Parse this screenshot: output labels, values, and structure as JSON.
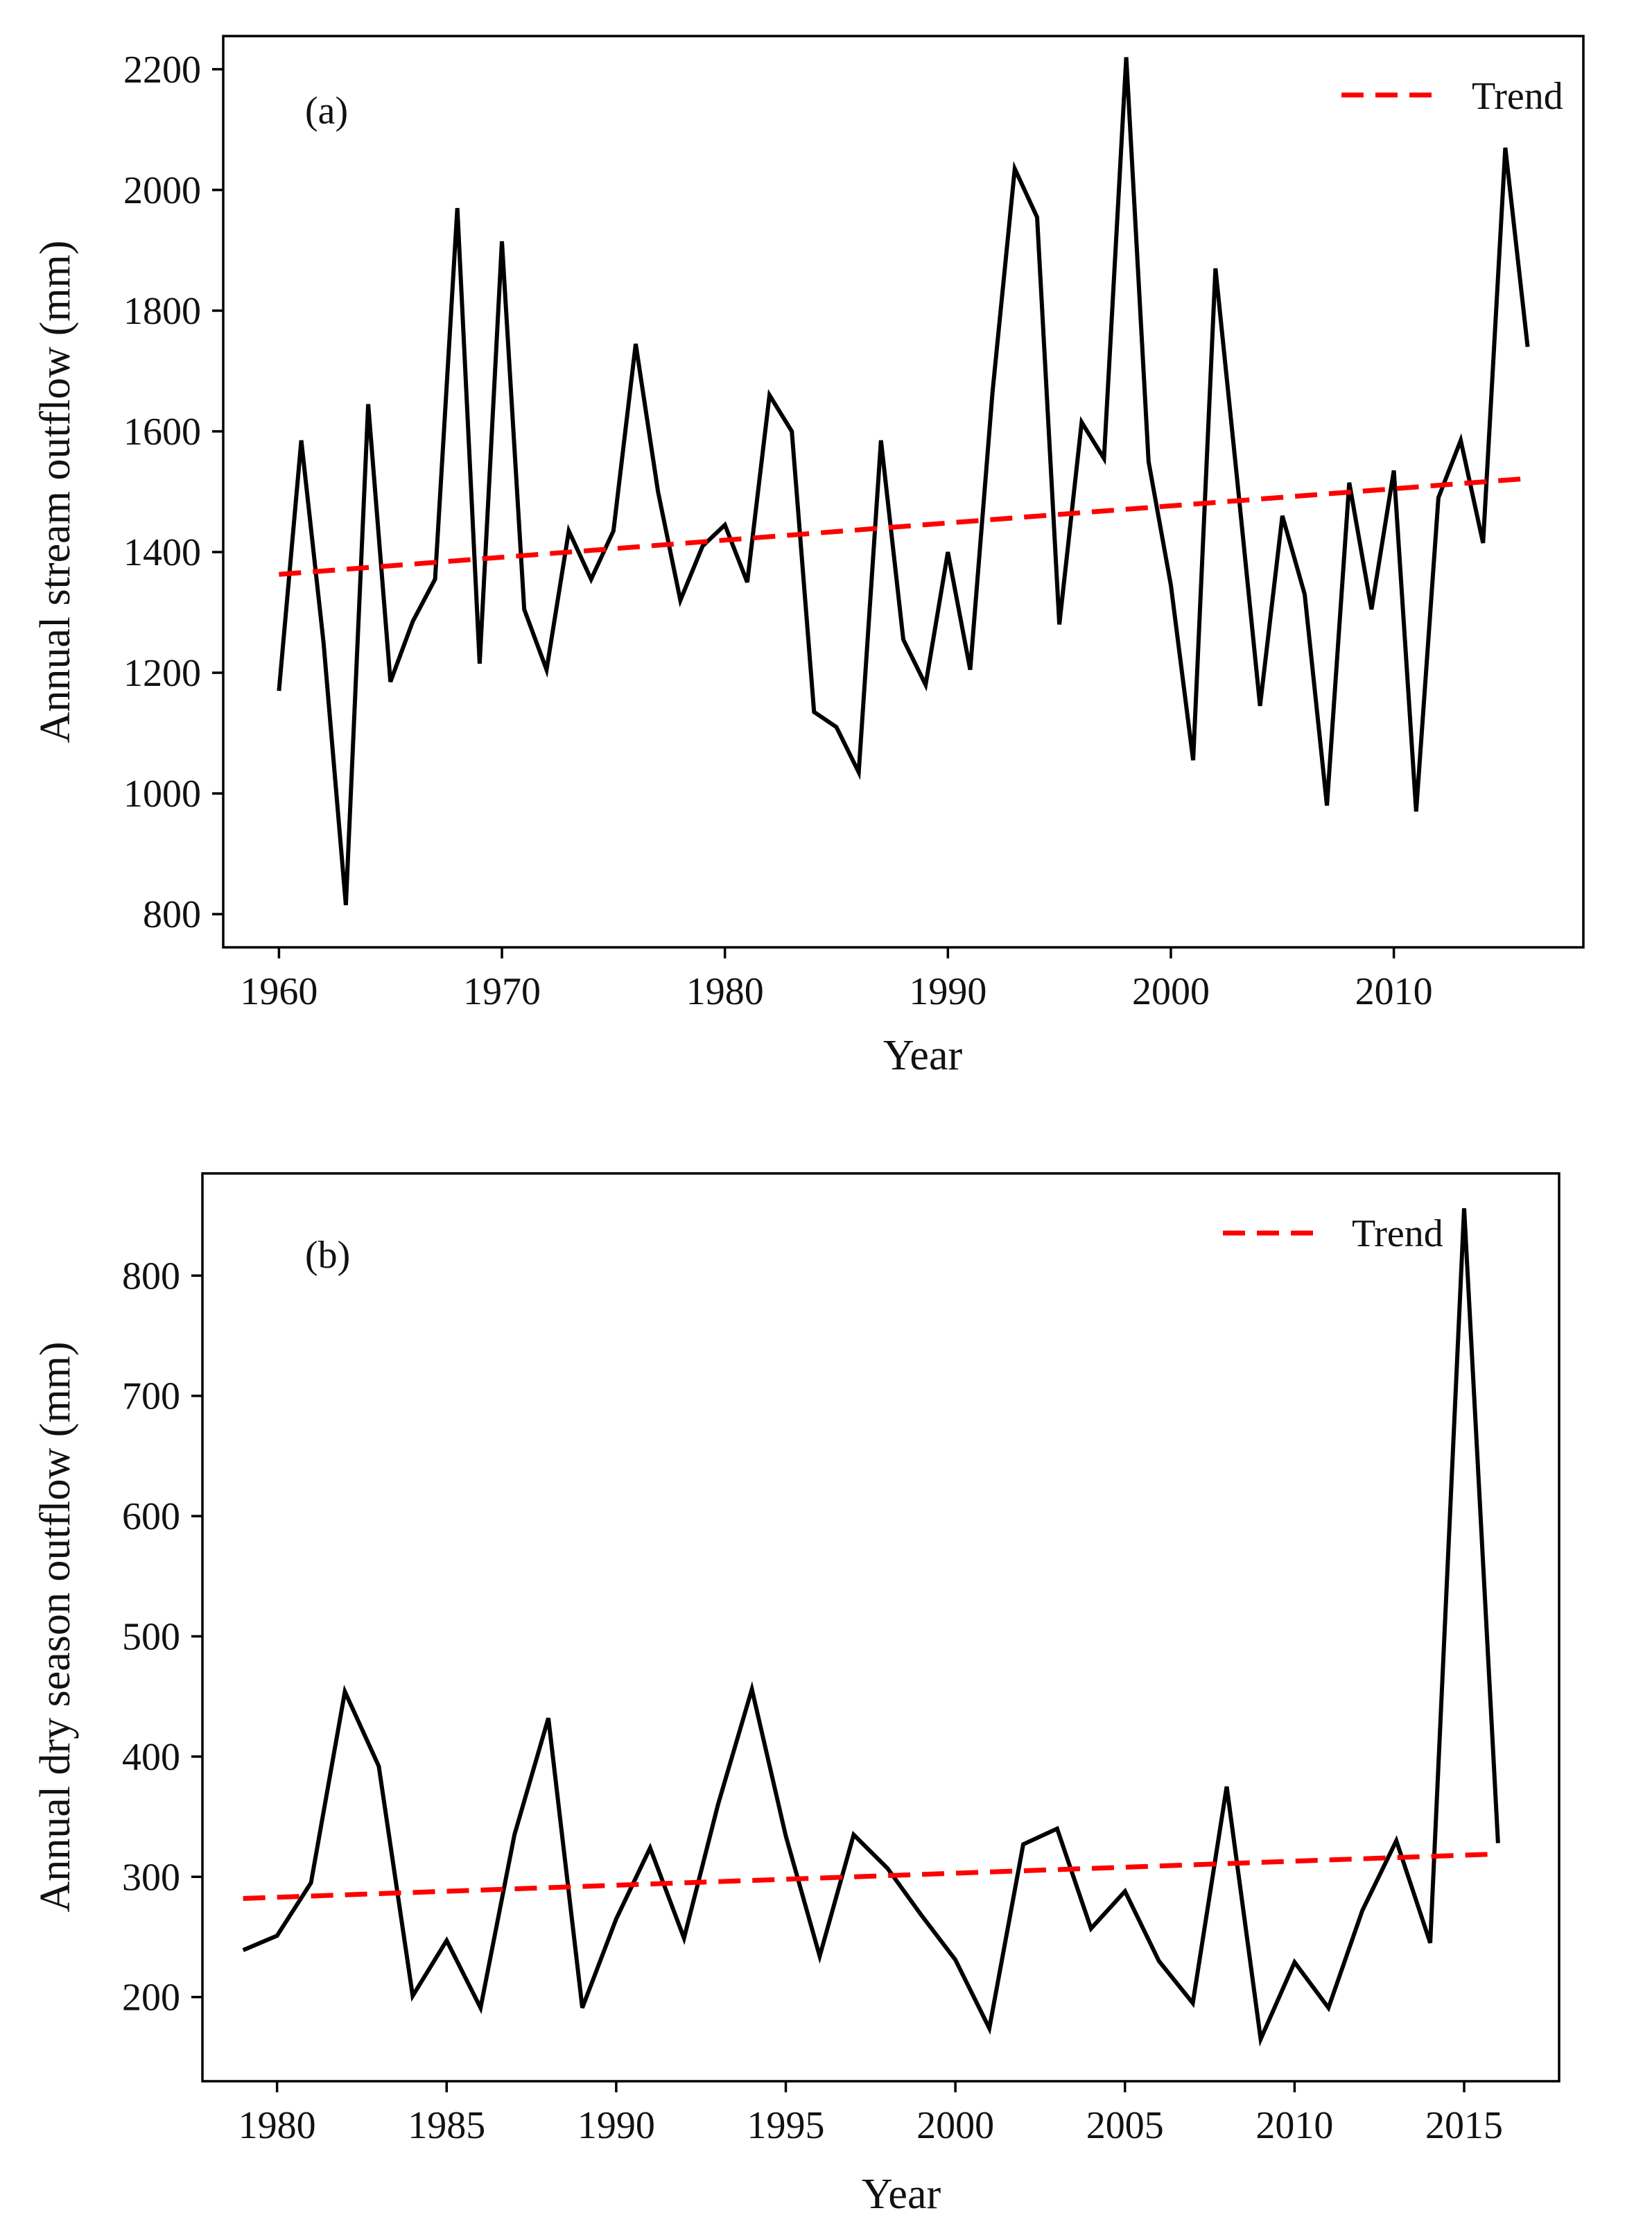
{
  "colors": {
    "series": "#000000",
    "trend": "#ff0000",
    "axes": "#000000",
    "background": "#ffffff"
  },
  "chart_data": [
    {
      "type": "line",
      "panel_label": "(a)",
      "xlabel": "Year",
      "ylabel": "Annual stream outflow (mm)",
      "xlim": [
        1957.5,
        2018.5
      ],
      "ylim": [
        745,
        2255
      ],
      "xticks": [
        1960,
        1970,
        1980,
        1990,
        2000,
        2010
      ],
      "yticks": [
        800,
        1000,
        1200,
        1400,
        1600,
        1800,
        2000,
        2200
      ],
      "grid": false,
      "legend": {
        "position": "top-right",
        "label": "Trend"
      },
      "series": [
        {
          "name": "Annual stream outflow",
          "style": "solid",
          "x": [
            1960,
            1961,
            1962,
            1963,
            1964,
            1965,
            1966,
            1967,
            1968,
            1969,
            1970,
            1971,
            1972,
            1973,
            1974,
            1975,
            1976,
            1977,
            1978,
            1979,
            1980,
            1981,
            1982,
            1983,
            1984,
            1985,
            1986,
            1987,
            1988,
            1989,
            1990,
            1991,
            1992,
            1993,
            1994,
            1995,
            1996,
            1997,
            1998,
            1999,
            2000,
            2001,
            2002,
            2003,
            2004,
            2005,
            2006,
            2007,
            2008,
            2009,
            2010,
            2011,
            2012,
            2013,
            2014,
            2015,
            2016
          ],
          "y": [
            1170,
            1585,
            1250,
            815,
            1645,
            1185,
            1285,
            1355,
            1970,
            1215,
            1915,
            1305,
            1205,
            1435,
            1355,
            1435,
            1745,
            1500,
            1320,
            1410,
            1445,
            1350,
            1660,
            1600,
            1135,
            1110,
            1035,
            1585,
            1255,
            1180,
            1400,
            1205,
            1665,
            2035,
            1955,
            1280,
            1615,
            1555,
            2220,
            1550,
            1345,
            1055,
            1870,
            1510,
            1145,
            1460,
            1330,
            980,
            1515,
            1305,
            1535,
            970,
            1490,
            1585,
            1415,
            2070,
            1740
          ]
        },
        {
          "name": "Trend",
          "style": "dashed",
          "x": [
            1960,
            2016
          ],
          "y": [
            1363,
            1522
          ]
        }
      ]
    },
    {
      "type": "line",
      "panel_label": "(b)",
      "xlabel": "Year",
      "ylabel": "Annual dry season outflow (mm)",
      "xlim": [
        1977.8,
        2017.8
      ],
      "ylim": [
        130,
        885
      ],
      "xticks": [
        1980,
        1985,
        1990,
        1995,
        2000,
        2005,
        2010,
        2015
      ],
      "yticks": [
        200,
        300,
        400,
        500,
        600,
        700,
        800
      ],
      "grid": false,
      "legend": {
        "position": "top-right",
        "label": "Trend"
      },
      "series": [
        {
          "name": "Annual dry season outflow",
          "style": "solid",
          "x": [
            1979,
            1980,
            1981,
            1982,
            1983,
            1984,
            1985,
            1986,
            1987,
            1988,
            1989,
            1990,
            1991,
            1992,
            1993,
            1994,
            1995,
            1996,
            1997,
            1998,
            1999,
            2000,
            2001,
            2002,
            2003,
            2004,
            2005,
            2006,
            2007,
            2008,
            2009,
            2010,
            2011,
            2012,
            2013,
            2014,
            2015,
            2016
          ],
          "y": [
            239,
            251,
            295,
            454,
            392,
            201,
            247,
            191,
            335,
            432,
            191,
            265,
            324,
            249,
            360,
            456,
            334,
            234,
            335,
            307,
            268,
            231,
            174,
            327,
            340,
            257,
            288,
            230,
            195,
            375,
            165,
            229,
            191,
            272,
            330,
            245,
            856,
            328
          ]
        },
        {
          "name": "Trend",
          "style": "dashed",
          "x": [
            1979,
            2016
          ],
          "y": [
            282,
            319
          ]
        }
      ]
    }
  ]
}
